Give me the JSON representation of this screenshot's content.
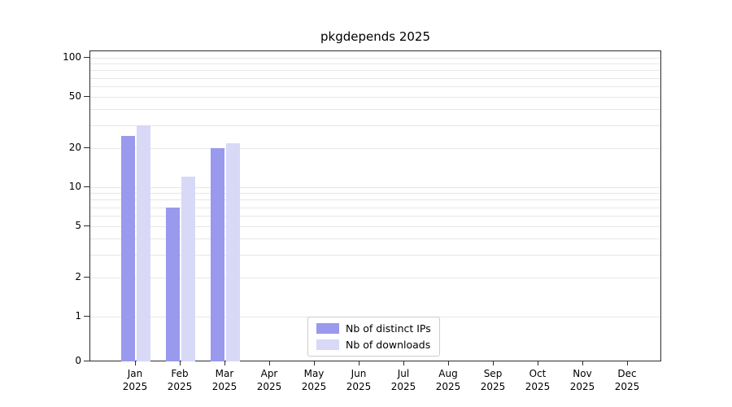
{
  "title": "pkgdepends 2025",
  "chart_data": {
    "type": "bar",
    "title": "pkgdepends 2025",
    "scale": "symlog",
    "grid": "horizontal",
    "legend_position": "bottom-center-inside",
    "ylim": [
      0,
      100
    ],
    "y_ticks": [
      0,
      1,
      2,
      5,
      10,
      20,
      50,
      100
    ],
    "categories": [
      {
        "month": "Jan",
        "year": "2025"
      },
      {
        "month": "Feb",
        "year": "2025"
      },
      {
        "month": "Mar",
        "year": "2025"
      },
      {
        "month": "Apr",
        "year": "2025"
      },
      {
        "month": "May",
        "year": "2025"
      },
      {
        "month": "Jun",
        "year": "2025"
      },
      {
        "month": "Jul",
        "year": "2025"
      },
      {
        "month": "Aug",
        "year": "2025"
      },
      {
        "month": "Sep",
        "year": "2025"
      },
      {
        "month": "Oct",
        "year": "2025"
      },
      {
        "month": "Nov",
        "year": "2025"
      },
      {
        "month": "Dec",
        "year": "2025"
      }
    ],
    "series": [
      {
        "name": "Nb of distinct IPs",
        "color": "#9999ee",
        "values": [
          25,
          7,
          20,
          0,
          0,
          0,
          0,
          0,
          0,
          0,
          0,
          0
        ]
      },
      {
        "name": "Nb of downloads",
        "color": "#d8d8f7",
        "values": [
          30,
          12,
          22,
          0,
          0,
          0,
          0,
          0,
          0,
          0,
          0,
          0
        ]
      }
    ]
  }
}
